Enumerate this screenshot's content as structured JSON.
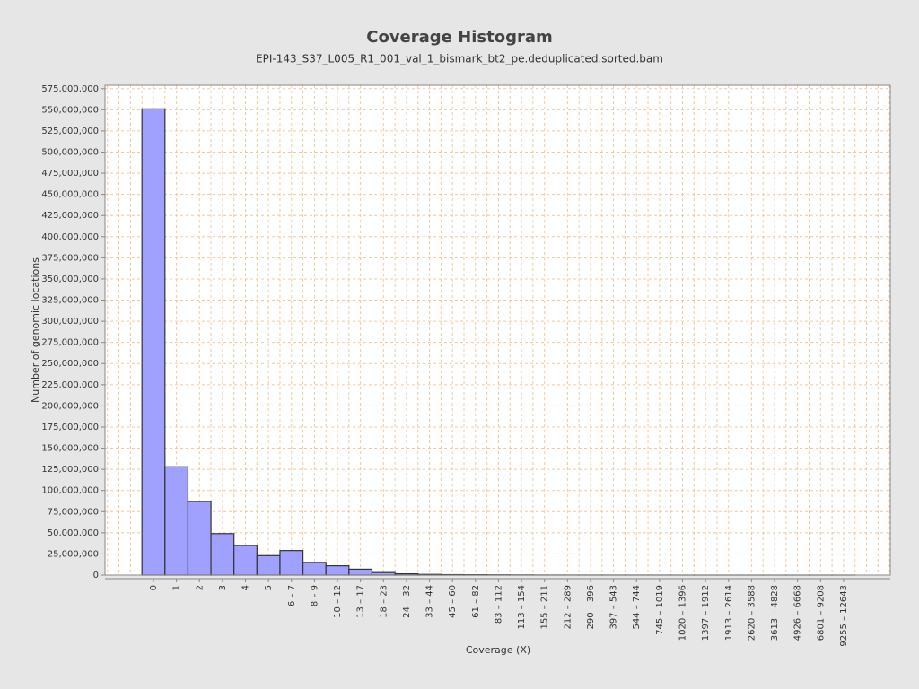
{
  "chart_data": {
    "type": "bar",
    "title": "Coverage Histogram",
    "subtitle": "EPI-143_S37_L005_R1_001_val_1_bismark_bt2_pe.deduplicated.sorted.bam",
    "x_label": "Coverage (X)",
    "y_label": "Number of genomic locations",
    "categories": [
      "0",
      "1",
      "2",
      "3",
      "4",
      "5",
      "6 – 7",
      "8 – 9",
      "10 – 12",
      "13 – 17",
      "18 – 23",
      "24 – 32",
      "33 – 44",
      "45 – 60",
      "61 – 82",
      "83 – 112",
      "113 – 154",
      "155 – 211",
      "212 – 289",
      "290 – 396",
      "397 – 543",
      "544 – 744",
      "745 – 1019",
      "1020 – 1396",
      "1397 – 1912",
      "1913 – 2614",
      "2620 – 3588",
      "3613 – 4828",
      "4926 – 6668",
      "6801 – 9208",
      "9255 – 12643"
    ],
    "values": [
      551000000,
      128000000,
      87000000,
      49000000,
      35000000,
      23000000,
      29000000,
      15000000,
      11000000,
      7000000,
      3000000,
      1500000,
      800000,
      500000,
      400000,
      300000,
      200000,
      100000,
      80000,
      60000,
      50000,
      40000,
      30000,
      20000,
      15000,
      10000,
      8000,
      6000,
      4000,
      3000,
      2000
    ],
    "color": "#a0a0ff",
    "ylim": [
      0,
      579000000
    ],
    "yticks": [
      0,
      {
        "value": 25000000,
        "label": "25,000,000"
      },
      {
        "value": 50000000,
        "label": "50,000,000"
      },
      {
        "value": 75000000,
        "label": "75,000,000"
      },
      {
        "value": 100000000,
        "label": "100,000,000"
      },
      {
        "value": 125000000,
        "label": "125,000,000"
      },
      {
        "value": 150000000,
        "label": "150,000,000"
      },
      {
        "value": 175000000,
        "label": "175,000,000"
      },
      {
        "value": 200000000,
        "label": "200,000,000"
      },
      {
        "value": 225000000,
        "label": "225,000,000"
      },
      {
        "value": 250000000,
        "label": "250,000,000"
      },
      {
        "value": 275000000,
        "label": "275,000,000"
      },
      {
        "value": 300000000,
        "label": "300,000,000"
      },
      {
        "value": 325000000,
        "label": "325,000,000"
      },
      {
        "value": 350000000,
        "label": "350,000,000"
      },
      {
        "value": 375000000,
        "label": "375,000,000"
      },
      {
        "value": 400000000,
        "label": "400,000,000"
      },
      {
        "value": 425000000,
        "label": "425,000,000"
      },
      {
        "value": 450000000,
        "label": "450,000,000"
      },
      {
        "value": 475000000,
        "label": "475,000,000"
      },
      {
        "value": 500000000,
        "label": "500,000,000"
      },
      {
        "value": 525000000,
        "label": "525,000,000"
      },
      {
        "value": 550000000,
        "label": "550,000,000"
      },
      {
        "value": 575000000,
        "label": "575,000,000"
      }
    ],
    "grid": true
  }
}
